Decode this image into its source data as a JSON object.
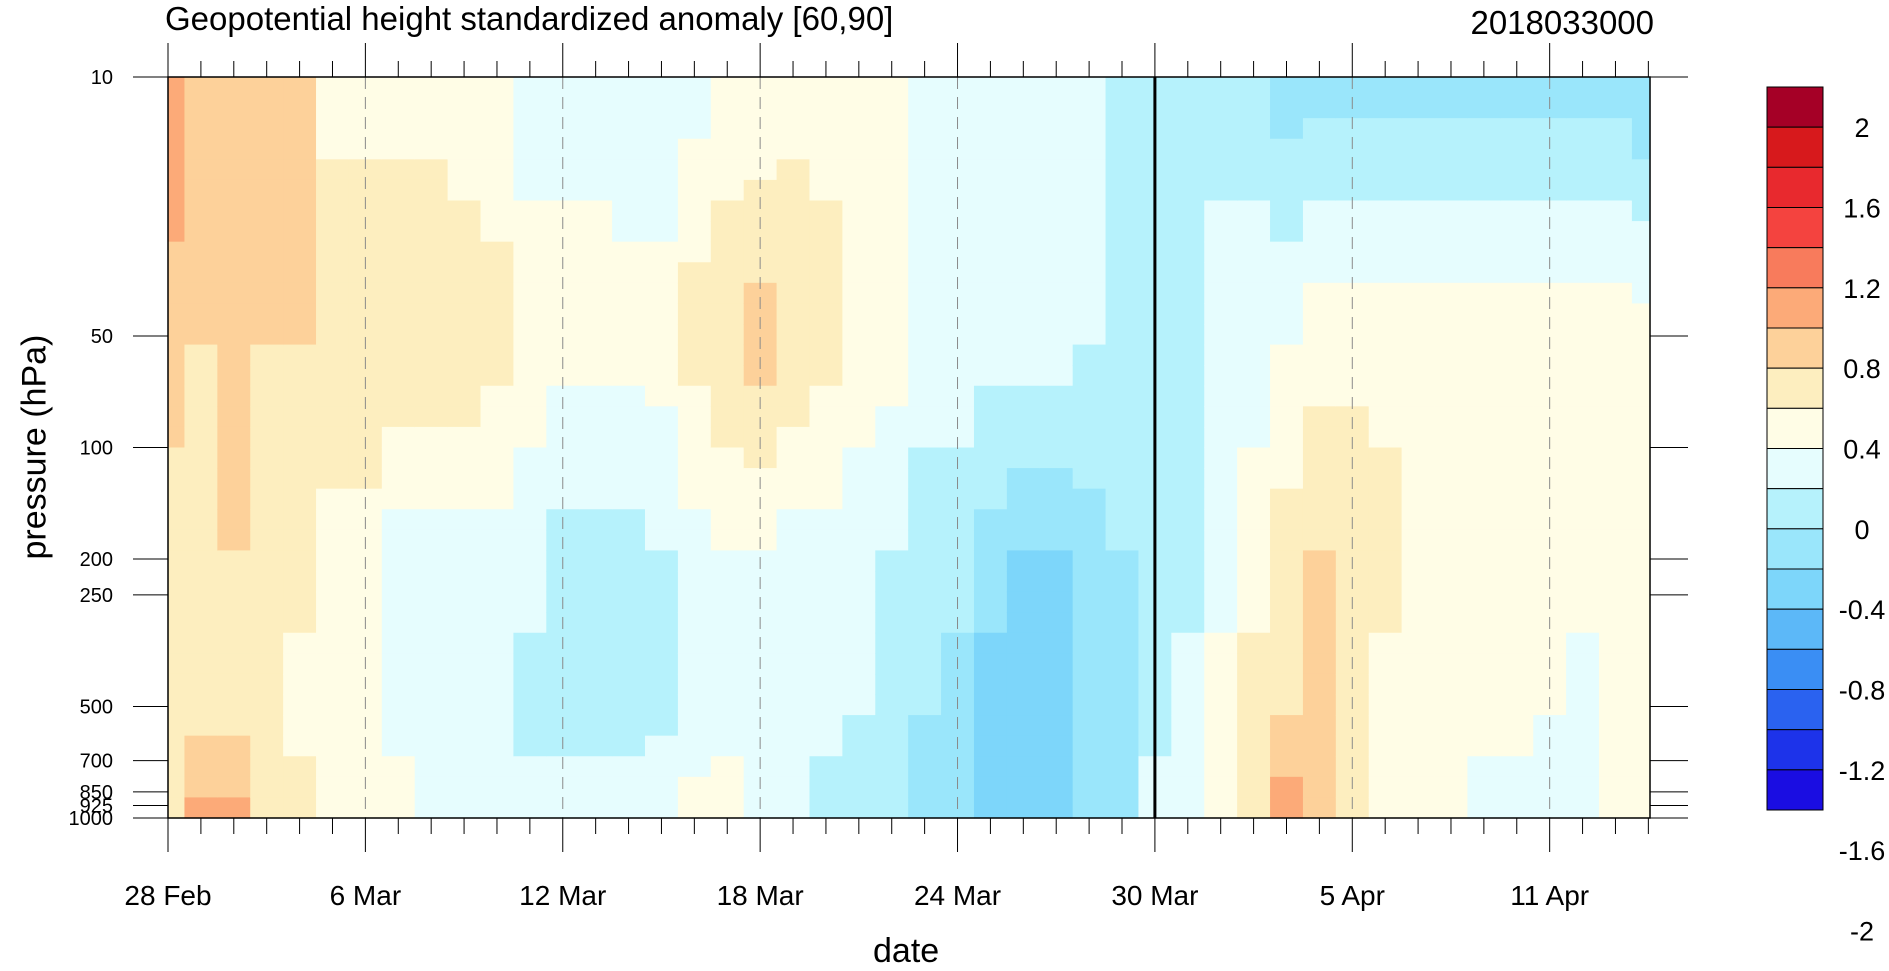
{
  "chart_data": {
    "type": "heatmap",
    "title": "Geopotential height standardized anomaly [60,90]",
    "subtitle": "2018033000",
    "xlabel": "date",
    "ylabel": "pressure (hPa)",
    "x_tick_labels": [
      "28 Feb",
      "6 Mar",
      "12 Mar",
      "18 Mar",
      "24 Mar",
      "30 Mar",
      "5 Apr",
      "11 Apr"
    ],
    "x_tick_days": [
      0,
      6,
      12,
      18,
      24,
      30,
      36,
      42
    ],
    "x_range_days": [
      0,
      45
    ],
    "y_tick_labels": [
      "10",
      "50",
      "100",
      "200",
      "250",
      "500",
      "700",
      "850",
      "925",
      "1000"
    ],
    "y_levels": [
      10,
      50,
      100,
      200,
      250,
      500,
      700,
      850,
      925,
      1000
    ],
    "y_scale": "log",
    "y_reversed": true,
    "analysis_line_day": 30,
    "grid": "dashed vertical at labeled ticks",
    "colorbar": {
      "labels": [
        "2",
        "1.6",
        "1.2",
        "0.8",
        "0.4",
        "0",
        "-0.4",
        "-0.8",
        "-1.2",
        "-1.6",
        "-2"
      ],
      "colors": [
        "#a50026",
        "#d7191c",
        "#e8292e",
        "#f4433f",
        "#f87b5c",
        "#fcaa78",
        "#fdd19a",
        "#fdeebf",
        "#fffde6",
        "#e6fdfe",
        "#b6f2fc",
        "#9ae6fb",
        "#7dd6fa",
        "#5cb8f8",
        "#3a8ef4",
        "#2a62f0",
        "#1d33ea",
        "#1a0de2"
      ]
    },
    "values_by_level": {
      "10": [
        1.0,
        0.6,
        0.6,
        0.6,
        0.6,
        0.3,
        0.3,
        0.3,
        0.3,
        0.2,
        0.2,
        0.1,
        0.1,
        0.1,
        0.0,
        0.0,
        0.1,
        0.2,
        0.2,
        0.3,
        0.3,
        0.3,
        0.2,
        0.1,
        0.1,
        0.1,
        0.1,
        0.1,
        0.1,
        -0.1,
        -0.1,
        -0.1,
        -0.1,
        -0.1,
        -0.3,
        -0.3,
        -0.3,
        -0.3,
        -0.3,
        -0.3,
        -0.3,
        -0.3,
        -0.3,
        -0.3,
        -0.3,
        -0.4
      ],
      "50": [
        0.7,
        0.6,
        0.6,
        0.6,
        0.6,
        0.6,
        0.6,
        0.6,
        0.6,
        0.6,
        0.5,
        0.3,
        0.3,
        0.3,
        0.3,
        0.3,
        0.5,
        0.6,
        0.7,
        0.6,
        0.5,
        0.3,
        0.3,
        0.1,
        0.1,
        0.1,
        0.1,
        0.1,
        0.0,
        0.0,
        -0.1,
        0.0,
        0.1,
        0.1,
        0.2,
        0.3,
        0.3,
        0.3,
        0.3,
        0.3,
        0.3,
        0.3,
        0.3,
        0.3,
        0.3,
        0.3
      ],
      "200": [
        0.5,
        0.5,
        0.6,
        0.5,
        0.5,
        0.3,
        0.3,
        0.1,
        0.1,
        0.1,
        0.1,
        0.1,
        -0.1,
        -0.1,
        -0.1,
        0.0,
        0.1,
        0.2,
        0.2,
        0.1,
        0.1,
        0.1,
        0.0,
        -0.1,
        -0.1,
        -0.3,
        -0.4,
        -0.4,
        -0.3,
        -0.2,
        -0.1,
        -0.1,
        0.1,
        0.3,
        0.5,
        0.6,
        0.6,
        0.5,
        0.3,
        0.3,
        0.3,
        0.3,
        0.3,
        0.3,
        0.3,
        0.3
      ],
      "500": [
        0.5,
        0.5,
        0.5,
        0.5,
        0.3,
        0.3,
        0.3,
        0.1,
        0.1,
        0.1,
        0.1,
        -0.1,
        -0.1,
        -0.1,
        -0.1,
        -0.1,
        0.0,
        0.1,
        0.1,
        0.1,
        0.1,
        0.0,
        0.0,
        -0.2,
        -0.3,
        -0.5,
        -0.6,
        -0.6,
        -0.4,
        -0.2,
        -0.1,
        0.1,
        0.3,
        0.5,
        0.6,
        0.6,
        0.5,
        0.3,
        0.3,
        0.3,
        0.3,
        0.3,
        0.2,
        0.1,
        0.3,
        0.3
      ],
      "1000": [
        0.6,
        0.9,
        0.9,
        0.6,
        0.5,
        0.3,
        0.3,
        0.3,
        0.1,
        0.1,
        0.1,
        0.1,
        0.1,
        0.1,
        0.1,
        0.2,
        0.3,
        0.3,
        0.2,
        0.1,
        -0.1,
        -0.2,
        -0.2,
        -0.2,
        -0.3,
        -0.5,
        -0.5,
        -0.4,
        -0.3,
        -0.2,
        0.1,
        0.2,
        0.3,
        0.5,
        0.9,
        0.6,
        0.5,
        0.3,
        0.3,
        0.3,
        0.1,
        0.1,
        0.1,
        0.1,
        0.3,
        0.3
      ]
    }
  }
}
